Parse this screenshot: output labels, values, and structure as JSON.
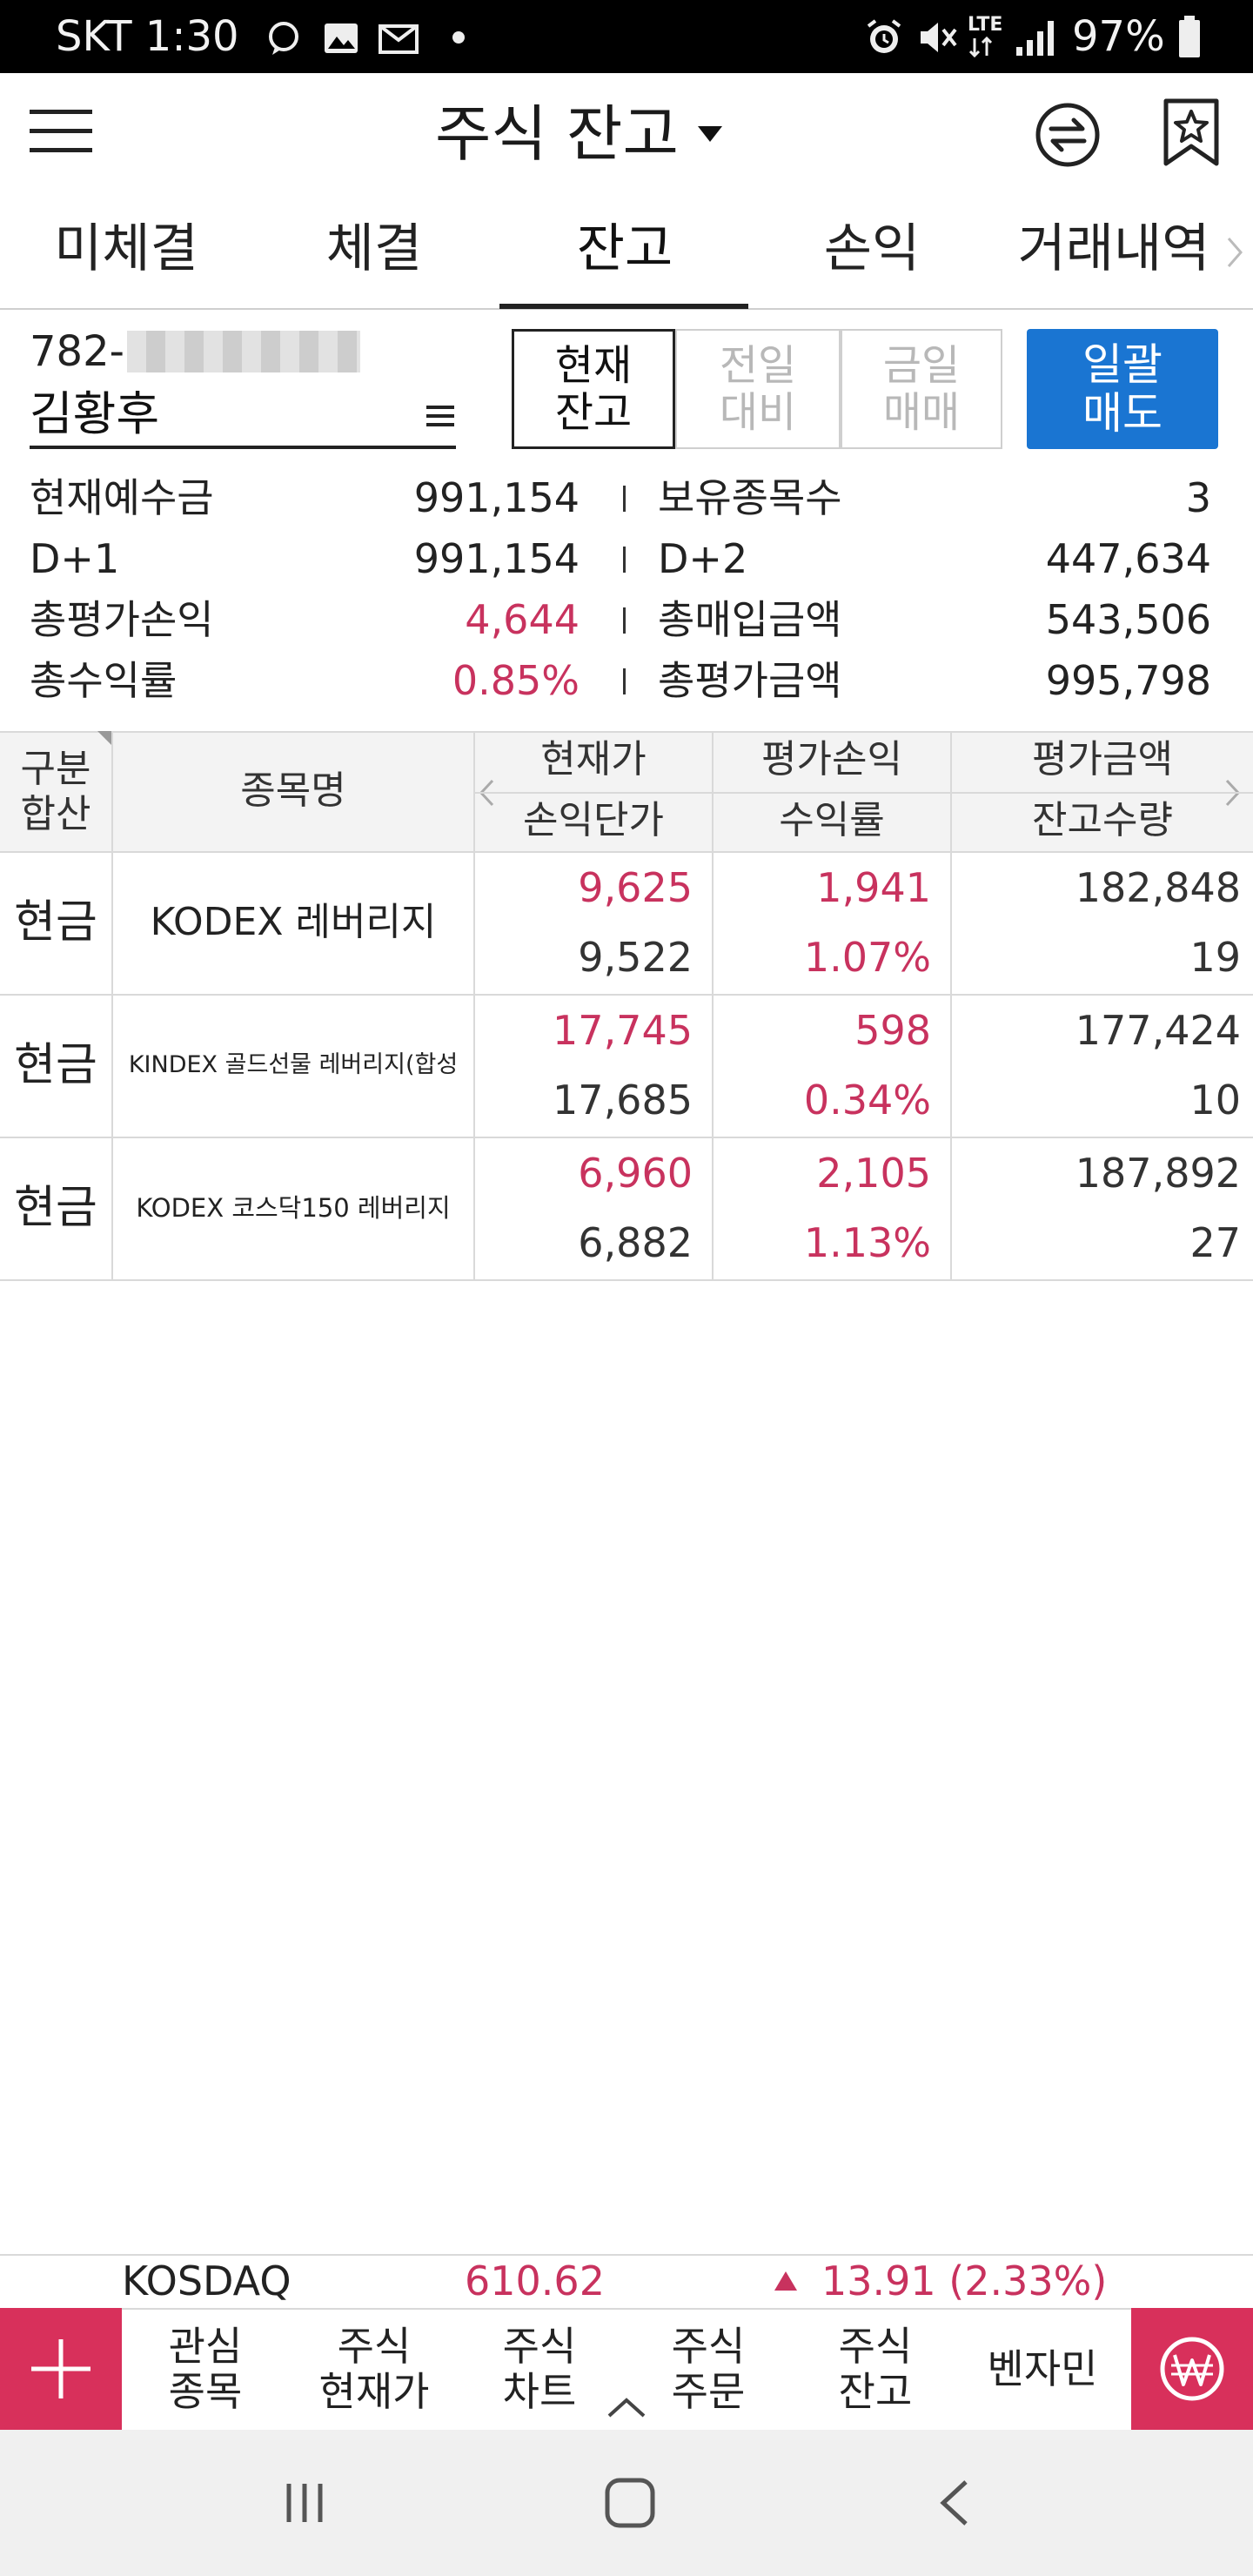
{
  "status_bar": {
    "carrier_time": "SKT 1:30",
    "battery": "97%",
    "network": "LTE",
    "icons": [
      "chat-icon",
      "image-icon",
      "mail-icon",
      "dot-icon",
      "alarm-icon",
      "mute-icon",
      "lte-icon",
      "signal-icon",
      "battery-icon"
    ]
  },
  "header": {
    "title": "주식 잔고",
    "icons": [
      "menu-icon",
      "dropdown-caret-icon",
      "swap-icon",
      "bookmark-star-icon"
    ]
  },
  "tabs": [
    {
      "label": "미체결"
    },
    {
      "label": "체결"
    },
    {
      "label": "잔고",
      "active": true
    },
    {
      "label": "손익"
    },
    {
      "label": "거래내역"
    }
  ],
  "account": {
    "number_prefix": "782-",
    "holder_name": "김황후"
  },
  "view_buttons": [
    {
      "line1": "현재",
      "line2": "잔고",
      "active": true
    },
    {
      "line1": "전일",
      "line2": "대비",
      "active": false
    },
    {
      "line1": "금일",
      "line2": "매매",
      "active": false
    }
  ],
  "sell_all_button": {
    "line1": "일괄",
    "line2": "매도"
  },
  "summary": {
    "left": [
      {
        "label": "현재예수금",
        "value": "991,154",
        "red": false
      },
      {
        "label": "D+1",
        "value": "991,154",
        "red": false
      },
      {
        "label": "총평가손익",
        "value": "4,644",
        "red": true
      },
      {
        "label": "총수익률",
        "value": "0.85%",
        "red": true
      }
    ],
    "right": [
      {
        "label": "보유종목수",
        "value": "3"
      },
      {
        "label": "D+2",
        "value": "447,634"
      },
      {
        "label": "총매입금액",
        "value": "543,506"
      },
      {
        "label": "총평가금액",
        "value": "995,798"
      }
    ]
  },
  "table": {
    "headers": {
      "gubun_top": "구분",
      "gubun_bottom": "합산",
      "name": "종목명",
      "col1_top": "현재가",
      "col1_bottom": "손익단가",
      "col2_top": "평가손익",
      "col2_bottom": "수익률",
      "col3_top": "평가금액",
      "col3_bottom": "잔고수량"
    },
    "rows": [
      {
        "type": "현금",
        "name": "KODEX 레버리지",
        "price": "9,625",
        "avg_price": "9,522",
        "pl": "1,941",
        "rate": "1.07%",
        "eval": "182,848",
        "qty": "19"
      },
      {
        "type": "현금",
        "name": "KINDEX 골드선물 레버리지(합성",
        "price": "17,745",
        "avg_price": "17,685",
        "pl": "598",
        "rate": "0.34%",
        "eval": "177,424",
        "qty": "10"
      },
      {
        "type": "현금",
        "name": "KODEX 코스닥150 레버리지",
        "price": "6,960",
        "avg_price": "6,882",
        "pl": "2,105",
        "rate": "1.13%",
        "eval": "187,892",
        "qty": "27"
      }
    ]
  },
  "ticker": {
    "index": "KOSDAQ",
    "value": "610.62",
    "change": "13.91 (2.33%)",
    "color": "#c8325e"
  },
  "bottom_menu": [
    {
      "line1": "관심",
      "line2": "종목"
    },
    {
      "line1": "주식",
      "line2": "현재가"
    },
    {
      "line1": "주식",
      "line2": "차트"
    },
    {
      "line1": "주식",
      "line2": "주문"
    },
    {
      "line1": "주식",
      "line2": "잔고"
    },
    {
      "line1": "벤자민",
      "line2": ""
    }
  ],
  "colors": {
    "accent_blue": "#1a75d2",
    "accent_red": "#d8305b",
    "profit_red": "#c8325e"
  }
}
